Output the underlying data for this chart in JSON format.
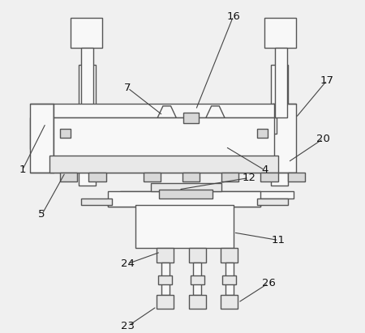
{
  "bg_color": "#f0f0f0",
  "line_color": "#555555",
  "fill_light": "#f8f8f8",
  "fill_mid": "#e8e8e8",
  "fill_dark": "#d8d8d8",
  "lw": 1.0
}
